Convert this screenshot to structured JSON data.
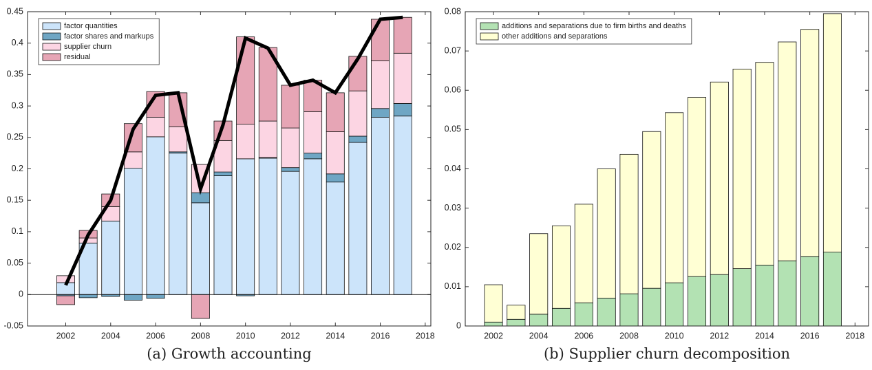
{
  "chart_data": [
    {
      "type": "bar",
      "stacked": true,
      "title": "(a) Growth accounting",
      "x": [
        2002,
        2003,
        2004,
        2005,
        2006,
        2007,
        2008,
        2009,
        2010,
        2011,
        2012,
        2013,
        2014,
        2015,
        2016,
        2017
      ],
      "xlim": [
        2000.3,
        2018.25
      ],
      "xticks": [
        2002,
        2004,
        2006,
        2008,
        2010,
        2012,
        2014,
        2016,
        2018
      ],
      "ylim": [
        -0.05,
        0.45
      ],
      "yticks": [
        -0.05,
        0,
        0.05,
        0.1,
        0.15,
        0.2,
        0.25,
        0.3,
        0.35,
        0.4,
        0.45
      ],
      "legend": "upper left",
      "series": [
        {
          "name": "factor quantities",
          "color": "#cce4fa",
          "values": [
            0.019,
            0.082,
            0.117,
            0.201,
            0.251,
            0.225,
            0.146,
            0.189,
            0.216,
            0.217,
            0.196,
            0.216,
            0.179,
            0.242,
            0.282,
            0.284
          ]
        },
        {
          "name": "factor shares and markups",
          "color": "#6fa6c4",
          "values": [
            -0.002,
            -0.005,
            -0.003,
            -0.009,
            -0.006,
            0.002,
            0.016,
            0.006,
            -0.002,
            0.001,
            0.006,
            0.009,
            0.013,
            0.01,
            0.014,
            0.02
          ]
        },
        {
          "name": "supplier churn",
          "color": "#fcd5e3",
          "values": [
            0.011,
            0.008,
            0.023,
            0.026,
            0.031,
            0.04,
            0.045,
            0.05,
            0.055,
            0.058,
            0.063,
            0.066,
            0.067,
            0.072,
            0.076,
            0.08
          ]
        },
        {
          "name": "residual",
          "color": "#e6a5b5",
          "values": [
            -0.014,
            0.012,
            0.02,
            0.045,
            0.041,
            0.054,
            -0.038,
            0.031,
            0.139,
            0.117,
            0.068,
            0.05,
            0.062,
            0.055,
            0.066,
            0.057
          ]
        },
        {
          "type": "line",
          "color": "#000000",
          "values": [
            0.015,
            0.095,
            0.15,
            0.263,
            0.317,
            0.321,
            0.168,
            0.27,
            0.408,
            0.392,
            0.333,
            0.341,
            0.321,
            0.375,
            0.438,
            0.441
          ]
        }
      ]
    },
    {
      "type": "bar",
      "stacked": true,
      "title": "(b) Supplier churn decomposition",
      "x": [
        2002,
        2003,
        2004,
        2005,
        2006,
        2007,
        2008,
        2009,
        2010,
        2011,
        2012,
        2013,
        2014,
        2015,
        2016,
        2017
      ],
      "xlim": [
        2000.75,
        2018.6
      ],
      "xticks": [
        2002,
        2004,
        2006,
        2008,
        2010,
        2012,
        2014,
        2016,
        2018
      ],
      "ylim": [
        0,
        0.08
      ],
      "yticks": [
        0,
        0.01,
        0.02,
        0.03,
        0.04,
        0.05,
        0.06,
        0.07,
        0.08
      ],
      "legend": "upper left",
      "series": [
        {
          "name": "additions and separations due to firm births and deaths",
          "color": "#b3e2b3",
          "values": [
            0.001,
            0.0017,
            0.003,
            0.0045,
            0.0059,
            0.0071,
            0.0082,
            0.0096,
            0.011,
            0.0126,
            0.0131,
            0.0146,
            0.0155,
            0.0166,
            0.0177,
            0.0188
          ]
        },
        {
          "name": "other additions and separations",
          "color": "#ffffd4",
          "values": [
            0.0095,
            0.0036,
            0.0205,
            0.021,
            0.0251,
            0.0329,
            0.0355,
            0.0399,
            0.0433,
            0.0456,
            0.049,
            0.0508,
            0.0516,
            0.0557,
            0.0578,
            0.0607
          ]
        }
      ]
    }
  ]
}
